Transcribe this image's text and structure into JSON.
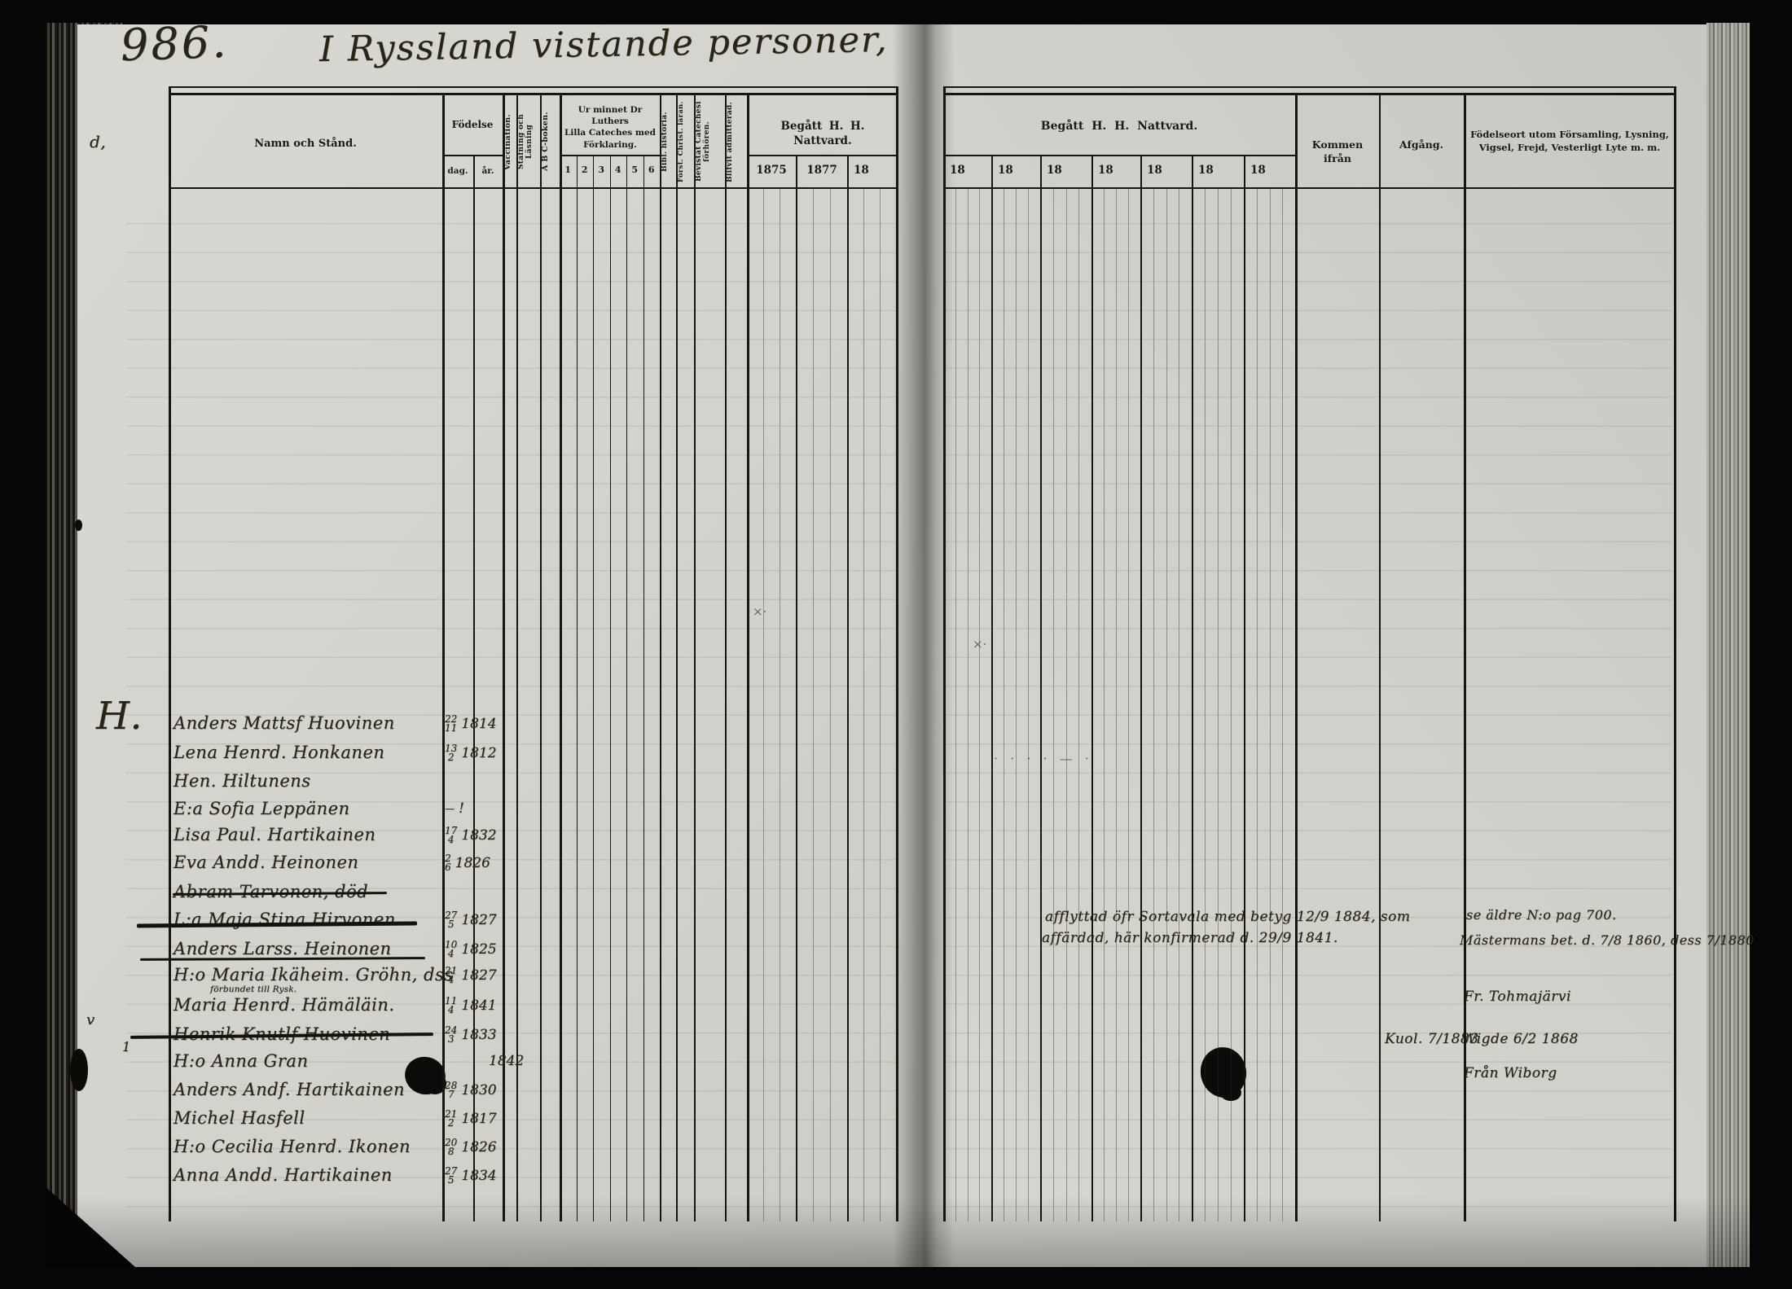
{
  "scan_colors": {
    "paper": "#d4d3ce",
    "ink": "#221f1a",
    "background": "#060606"
  },
  "page_header": {
    "page_number": "986.",
    "title": "I Ryssland vistande personer,"
  },
  "left_table": {
    "col_name": "Namn och Stånd.",
    "col_birth": "Födelse",
    "col_birth_day": "dag.",
    "col_birth_year": "år.",
    "col_vaccination": "Vaccination.",
    "col_reading_l1": "Stafning och",
    "col_reading_l2": "Läsning",
    "col_abc": "A B C-boken.",
    "col_cateches_l1": "Ur minnet Dr Luthers",
    "col_cateches_l2": "Lilla Cateches med",
    "col_cateches_l3": "Förklaring.",
    "cateches_numbers": [
      "1",
      "2",
      "3",
      "4",
      "5",
      "6"
    ],
    "col_bibl": "Bibl. historia.",
    "col_christ": "Först. Christ. läran.",
    "col_bevistat_l1": "Bevistat Catechesi",
    "col_bevistat_l2": "förhören.",
    "col_admitted": "Blifvit admitterad.",
    "col_communion": "Begått H. H. Nattvard.",
    "communion_years": [
      "1875",
      "1877",
      "18"
    ]
  },
  "right_table": {
    "col_communion": "Begått H. H. Nattvard.",
    "year_headers": [
      "18",
      "18",
      "18",
      "18",
      "18",
      "18",
      "18"
    ],
    "col_from": "Kommen ifrån",
    "col_departure": "Afgång.",
    "col_birthplace_l1": "Födelseort utom Församling, Lysning,",
    "col_birthplace_l2": "Vigsel, Frejd, Vesterligt Lyte m. m."
  },
  "margin_marks": {
    "letter": "H.",
    "top_mark": "d,",
    "check_mark": "v",
    "row_mark": "1",
    "small_cross": "×·"
  },
  "entries": [
    {
      "name": "Anders Mattsf Huovinen",
      "day": "22",
      "month": "11",
      "year": "1814"
    },
    {
      "name": "Lena Henrd. Honkanen",
      "day": "13",
      "month": "2",
      "year": "1812"
    },
    {
      "name": "Hen. Hiltunens",
      "day": "",
      "month": "",
      "year": ""
    },
    {
      "name": "E:a Sofia Leppänen",
      "day": "—",
      "month": "",
      "year": "!"
    },
    {
      "name": "Lisa Paul. Hartikainen",
      "day": "17",
      "month": "4",
      "year": "1832"
    },
    {
      "name": "Eva Andd. Heinonen",
      "day": "2",
      "month": "6",
      "year": "1826"
    },
    {
      "name": "Abram Tarvonen, död",
      "day": "",
      "month": "",
      "year": "",
      "struck": true
    },
    {
      "name": "L:a Maja Stina Hirvonen",
      "day": "27",
      "month": "5",
      "year": "1827",
      "struck": true
    },
    {
      "name": "Anders Larss. Heinonen",
      "day": "10",
      "month": "4",
      "year": "1825",
      "struck": true
    },
    {
      "name": "H:o Maria Ikäheim. Gröhn, dss",
      "day": "21",
      "month": "4",
      "year": "1827",
      "note": "förbundet till Rysk."
    },
    {
      "name": "Maria Henrd. Hämäläin.",
      "day": "11",
      "month": "4",
      "year": "1841"
    },
    {
      "name": "Henrik Knutlf Huovinen",
      "day": "24",
      "month": "3",
      "year": "1833",
      "struck": true
    },
    {
      "name": "H:o Anna Gran",
      "day": "",
      "month": "",
      "year": "1842"
    },
    {
      "name": "Anders Andf. Hartikainen",
      "day": "28",
      "month": "7",
      "year": "1830"
    },
    {
      "name": "Michel Hasfell",
      "day": "21",
      "month": "2",
      "year": "1817"
    },
    {
      "name": "H:o Cecilia Henrd. Ikonen",
      "day": "20",
      "month": "8",
      "year": "1826"
    },
    {
      "name": "Anna Andd. Hartikainen",
      "day": "27",
      "month": "5",
      "year": "1834"
    }
  ],
  "right_notes": {
    "migr_line1": "afflyttad öfr Sortavala med betyg 12/9 1884, som",
    "migr_line2": "affärdad, här konfirmerad d. 29/9 1841.",
    "ref_line1": "se äldre N:o pag 700.",
    "ref_line2": "Mästermans bet. d. 7/8 1860, dess 7/1880",
    "from_note": "Fr. Tohmajärvi",
    "departure_note": "Kuol. 7/1883",
    "wedding_note": "Wigde 6/2 1868",
    "origin_note": "Från Wiborg",
    "pencil_dots": "· · · ·  — ·"
  }
}
